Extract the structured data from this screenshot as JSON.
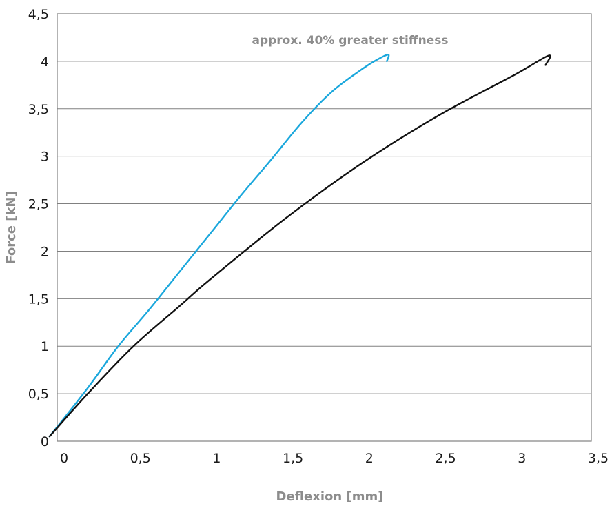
{
  "chart_data": {
    "type": "line",
    "title": "",
    "xlabel": "Deflexion [mm]",
    "ylabel": "Force [kN]",
    "xlim": [
      0,
      3.5
    ],
    "ylim": [
      0,
      4.5
    ],
    "x_ticks": [
      "0",
      "0,5",
      "1",
      "1,5",
      "2",
      "2,5",
      "3",
      "3,5"
    ],
    "y_ticks": [
      "0",
      "0,5",
      "1",
      "1,5",
      "2",
      "2,5",
      "3",
      "3,5",
      "4",
      "4,5"
    ],
    "grid": "horizontal",
    "annotation": "approx. 40% greater stiffness",
    "series": [
      {
        "color": "#1aa7dc",
        "points": [
          [
            -0.05,
            0.05
          ],
          [
            0.2,
            0.56
          ],
          [
            0.4,
            1.0
          ],
          [
            0.6,
            1.38
          ],
          [
            0.8,
            1.78
          ],
          [
            1.0,
            2.18
          ],
          [
            1.2,
            2.58
          ],
          [
            1.4,
            2.96
          ],
          [
            1.6,
            3.35
          ],
          [
            1.8,
            3.68
          ],
          [
            2.0,
            3.92
          ],
          [
            2.1,
            4.02
          ],
          [
            2.17,
            4.07
          ],
          [
            2.16,
            4.0
          ]
        ]
      },
      {
        "color": "#111111",
        "points": [
          [
            -0.05,
            0.05
          ],
          [
            0.2,
            0.5
          ],
          [
            0.5,
            1.0
          ],
          [
            0.8,
            1.42
          ],
          [
            1.0,
            1.7
          ],
          [
            1.5,
            2.35
          ],
          [
            2.0,
            2.93
          ],
          [
            2.5,
            3.43
          ],
          [
            3.0,
            3.86
          ],
          [
            3.22,
            4.06
          ],
          [
            3.2,
            3.96
          ]
        ]
      }
    ]
  }
}
